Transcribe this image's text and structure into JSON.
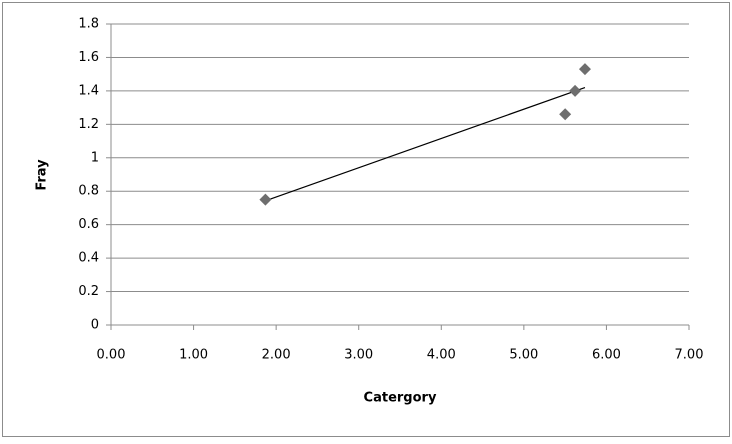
{
  "chart_data": {
    "type": "scatter",
    "x_label": "Catergory",
    "y_label": "Fray",
    "series": [
      {
        "name": "Fray",
        "color": "#6e6e6e",
        "x": [
          1.87,
          5.5,
          5.62,
          5.74
        ],
        "values": [
          0.75,
          1.26,
          1.4,
          1.53
        ]
      }
    ],
    "trendline": "linear",
    "xlim": [
      0,
      7
    ],
    "xticks": [
      {
        "value": 0,
        "label": "0.00"
      },
      {
        "value": 1,
        "label": "1.00"
      },
      {
        "value": 2,
        "label": "2.00"
      },
      {
        "value": 3,
        "label": "3.00"
      },
      {
        "value": 4,
        "label": "4.00"
      },
      {
        "value": 5,
        "label": "5.00"
      },
      {
        "value": 6,
        "label": "6.00"
      },
      {
        "value": 7,
        "label": "7.00"
      }
    ],
    "ylim": [
      0,
      1.8
    ],
    "yticks": [
      0,
      0.2,
      0.4,
      0.6,
      0.8,
      1,
      1.2,
      1.4,
      1.6,
      1.8
    ],
    "grid": true
  }
}
